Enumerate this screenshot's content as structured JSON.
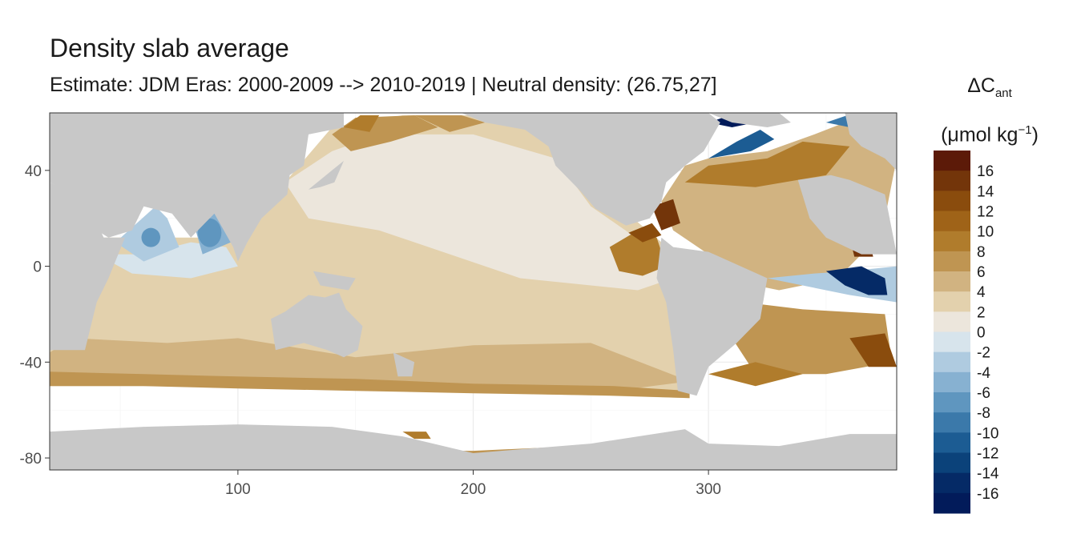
{
  "title": "Density slab average",
  "subtitle": "Estimate: JDM Eras: 2000-2009 --> 2010-2019 | Neutral density: (26.75,27]",
  "legend": {
    "title_symbol": "ΔC",
    "title_sub": "ant",
    "unit_prefix": "(μmol kg",
    "unit_sup": "−1",
    "unit_suffix": ")"
  },
  "colors": {
    "land": "#c8c8c8",
    "panel_border": "#333333",
    "grid": "#ebebeb"
  },
  "chart_data": {
    "type": "heatmap",
    "title": "Density slab average",
    "subtitle": "Estimate: JDM Eras: 2000-2009 --> 2010-2019 | Neutral density: (26.75,27]",
    "xlim": [
      20,
      380
    ],
    "ylim": [
      -85,
      64
    ],
    "x_ticks": [
      100,
      200,
      300
    ],
    "y_ticks": [
      40,
      0,
      -40,
      -80
    ],
    "grid": true,
    "legend_position": "right",
    "color_scale": {
      "bins": [
        {
          "lower": 16,
          "color": "#5c1a08"
        },
        {
          "lower": 14,
          "color": "#73350a"
        },
        {
          "lower": 12,
          "color": "#8a4c0d"
        },
        {
          "lower": 10,
          "color": "#9f6318"
        },
        {
          "lower": 8,
          "color": "#b07c2c"
        },
        {
          "lower": 6,
          "color": "#bf9552"
        },
        {
          "lower": 4,
          "color": "#d1b381"
        },
        {
          "lower": 2,
          "color": "#e3d1ad"
        },
        {
          "lower": 0,
          "color": "#ece6dc"
        },
        {
          "lower": -2,
          "color": "#d7e4ec"
        },
        {
          "lower": -4,
          "color": "#afcbe0"
        },
        {
          "lower": -6,
          "color": "#87b1d1"
        },
        {
          "lower": -8,
          "color": "#5f96bf"
        },
        {
          "lower": -10,
          "color": "#3b79aa"
        },
        {
          "lower": -12,
          "color": "#1c5c93"
        },
        {
          "lower": -14,
          "color": "#0b427a"
        },
        {
          "lower": -16,
          "color": "#052a66"
        },
        {
          "lower": -18,
          "color": "#021b5a"
        }
      ],
      "tick_labels": [
        "16",
        "14",
        "12",
        "10",
        "8",
        "6",
        "4",
        "2",
        "0",
        "-2",
        "-4",
        "-6",
        "-8",
        "-10",
        "-12",
        "-14",
        "-16"
      ]
    }
  }
}
